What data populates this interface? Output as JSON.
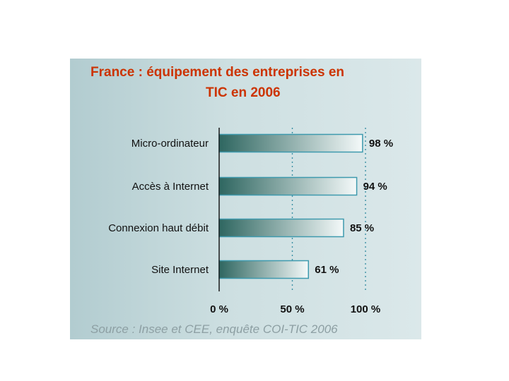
{
  "chart_data": {
    "type": "bar",
    "orientation": "horizontal",
    "title_lines": [
      "France : équipement des entreprises en",
      "TIC en 2006"
    ],
    "categories": [
      "Micro-ordinateur",
      "Accès à Internet",
      "Connexion haut débit",
      "Site Internet"
    ],
    "values": [
      98,
      94,
      85,
      61
    ],
    "value_labels": [
      "98 %",
      "94 %",
      "85 %",
      "61 %"
    ],
    "x_ticks": [
      0,
      50,
      100
    ],
    "x_tick_labels": [
      "0 %",
      "50 %",
      "100 %"
    ],
    "xlim": [
      0,
      100
    ],
    "grid": "dotted vertical at 50 % and 100 %",
    "legend": "none",
    "source": "Source : Insee et CEE, enquête COI-TIC 2006",
    "colors": {
      "title": "#cc3300",
      "bar_dark": "#2e6660",
      "bar_light": "#f4f9f9",
      "bar_border": "#3e9aae",
      "gridline": "#3a8fa4",
      "axis": "#1a1a1a",
      "source": "#8d9fa3"
    }
  }
}
